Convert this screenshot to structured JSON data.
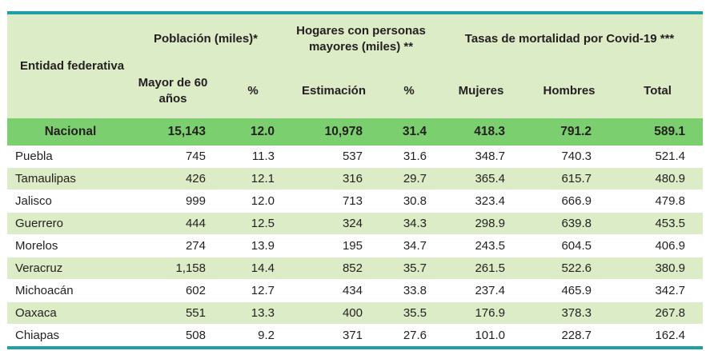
{
  "header": {
    "entity": "Entidad federativa",
    "group1": "Población (miles)*",
    "group2": "Hogares con personas mayores (miles) **",
    "group3": "Tasas de mortalidad por Covid-19 ***",
    "sub": [
      "Mayor de 60 años",
      "%",
      "Estimación",
      "%",
      "Mujeres",
      "Hombres",
      "Total"
    ]
  },
  "national": [
    "Nacional",
    "15,143",
    "12.0",
    "10,978",
    "31.4",
    "418.3",
    "791.2",
    "589.1"
  ],
  "rows": [
    [
      "Puebla",
      "745",
      "11.3",
      "537",
      "31.6",
      "348.7",
      "740.3",
      "521.4"
    ],
    [
      "Tamaulipas",
      "426",
      "12.1",
      "316",
      "29.7",
      "365.4",
      "615.7",
      "480.9"
    ],
    [
      "Jalisco",
      "999",
      "12.0",
      "713",
      "30.8",
      "323.4",
      "666.9",
      "479.8"
    ],
    [
      "Guerrero",
      "444",
      "12.5",
      "324",
      "34.3",
      "298.9",
      "639.8",
      "453.5"
    ],
    [
      "Morelos",
      "274",
      "13.9",
      "195",
      "34.7",
      "243.5",
      "604.5",
      "406.9"
    ],
    [
      "Veracruz",
      "1,158",
      "14.4",
      "852",
      "35.7",
      "261.5",
      "522.6",
      "380.9"
    ],
    [
      "Michoacán",
      "602",
      "12.7",
      "434",
      "33.8",
      "237.4",
      "465.9",
      "342.7"
    ],
    [
      "Oaxaca",
      "551",
      "13.3",
      "400",
      "35.5",
      "176.9",
      "378.3",
      "267.8"
    ],
    [
      "Chiapas",
      "508",
      "9.2",
      "371",
      "27.6",
      "101.0",
      "228.7",
      "162.4"
    ]
  ],
  "colors": {
    "rule": "#1f9fa6",
    "header_bg": "#dcecc6",
    "national_bg": "#7ccf6e"
  }
}
